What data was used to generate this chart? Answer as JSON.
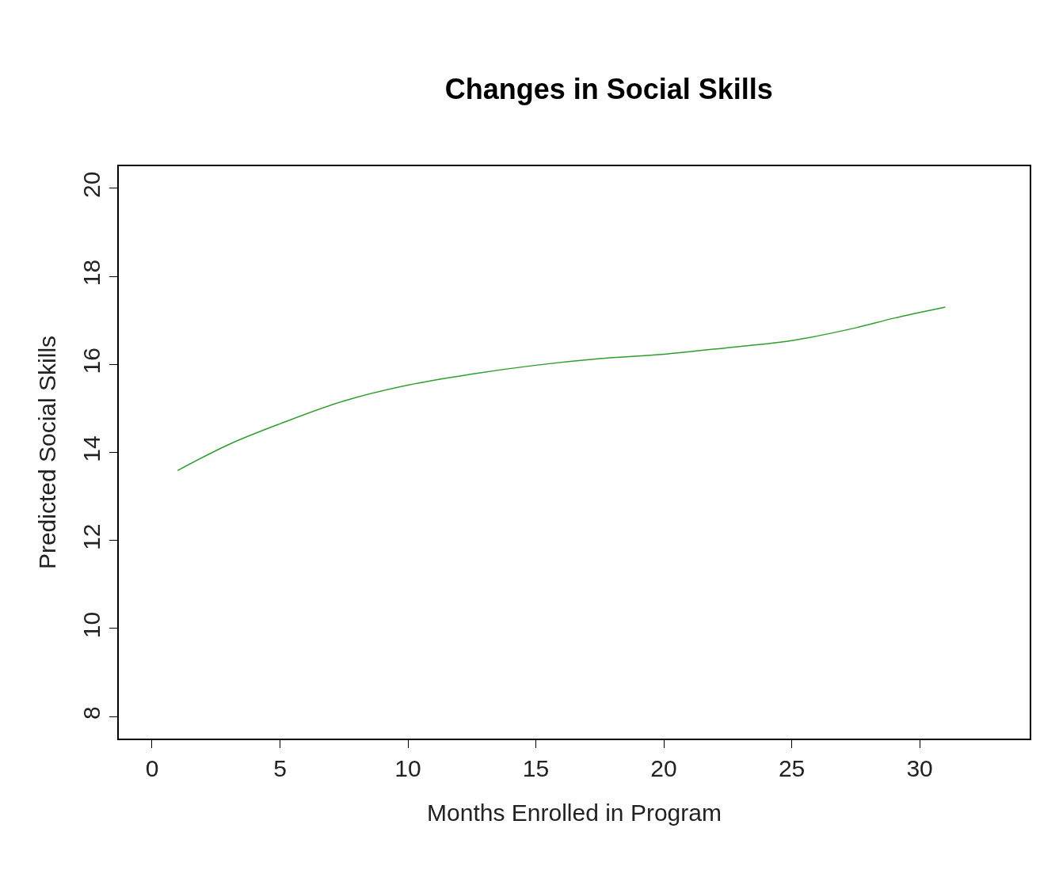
{
  "chart_data": {
    "type": "line",
    "title": "Changes in Social Skills",
    "xlabel": "Months Enrolled in Program",
    "ylabel": "Predicted Social Skills",
    "x": [
      1,
      3,
      5,
      7.5,
      10,
      12.5,
      15,
      17.5,
      20,
      22.5,
      25,
      27.5,
      29,
      31
    ],
    "series": [
      {
        "color": "#2ca02c",
        "values": [
          13.59,
          14.18,
          14.65,
          15.17,
          15.53,
          15.78,
          15.98,
          16.13,
          16.23,
          16.38,
          16.54,
          16.83,
          17.05,
          17.3
        ]
      }
    ],
    "xlim": [
      -1.3,
      34.3
    ],
    "ylim": [
      7.5,
      20.5
    ],
    "xticks": [
      0,
      5,
      10,
      15,
      20,
      25,
      30
    ],
    "yticks": [
      8,
      10,
      12,
      14,
      16,
      18,
      20
    ],
    "legend": false,
    "marker": "none",
    "line_style": "solid"
  }
}
